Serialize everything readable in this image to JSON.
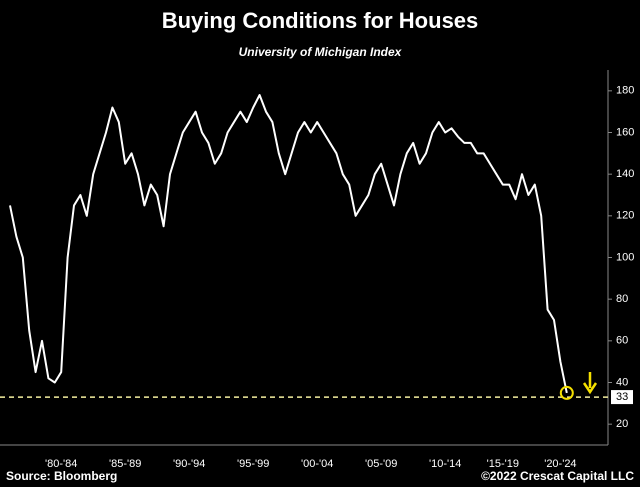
{
  "chart_data": {
    "type": "line",
    "title": "Buying Conditions for Houses",
    "subtitle": "University of Michigan Index",
    "source": "Source: Bloomberg",
    "credit": "©2022 Crescat Capital LLC",
    "categories": [
      null,
      null,
      null,
      null,
      null,
      null,
      null,
      null,
      "'80-'84",
      null,
      null,
      null,
      null,
      null,
      null,
      null,
      null,
      null,
      "'85-'89",
      null,
      null,
      null,
      null,
      null,
      null,
      null,
      null,
      null,
      "'90-'94",
      null,
      null,
      null,
      null,
      null,
      null,
      null,
      null,
      null,
      "'95-'99",
      null,
      null,
      null,
      null,
      null,
      null,
      null,
      null,
      null,
      "'00-'04",
      null,
      null,
      null,
      null,
      null,
      null,
      null,
      null,
      null,
      "'05-'09",
      null,
      null,
      null,
      null,
      null,
      null,
      null,
      null,
      null,
      "'10-'14",
      null,
      null,
      null,
      null,
      null,
      null,
      null,
      null,
      "'15-'19",
      null,
      null,
      null,
      null,
      null,
      null,
      null,
      null,
      "'20-'24",
      null
    ],
    "series": [
      {
        "color": "#ffffff",
        "values": [
          125,
          110,
          100,
          65,
          45,
          60,
          42,
          40,
          45,
          100,
          125,
          130,
          120,
          140,
          150,
          160,
          172,
          165,
          145,
          150,
          140,
          125,
          135,
          130,
          115,
          140,
          150,
          160,
          165,
          170,
          160,
          155,
          145,
          150,
          160,
          165,
          170,
          165,
          172,
          178,
          170,
          165,
          150,
          140,
          150,
          160,
          165,
          160,
          165,
          160,
          155,
          150,
          140,
          135,
          120,
          125,
          130,
          140,
          145,
          135,
          125,
          140,
          150,
          155,
          145,
          150,
          160,
          165,
          160,
          162,
          158,
          155,
          155,
          150,
          150,
          145,
          140,
          135,
          135,
          128,
          140,
          130,
          135,
          120,
          75,
          70,
          50,
          35
        ]
      }
    ],
    "reference_line": 33,
    "ylim": [
      10,
      190
    ],
    "yticks": [
      20,
      40,
      60,
      80,
      100,
      120,
      140,
      160,
      180
    ]
  }
}
